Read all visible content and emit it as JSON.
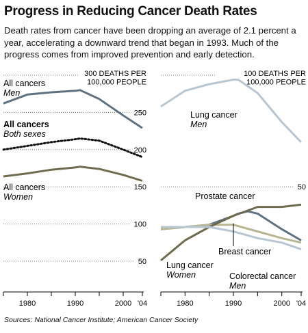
{
  "header": {
    "title": "Progress in Reducing Cancer Death Rates",
    "subtitle": "Death rates from cancer have been dropping an average of 2.1 percent a year, accelerating a downward trend that began in 1993. Much of the progress comes from improved prevention and early detection."
  },
  "source": "Sources: National Cancer Institute; American Cancer Society",
  "colors": {
    "slate": "#5e7181",
    "olive": "#6f6b4e",
    "light_blue": "#b8c6d2",
    "khaki": "#b6b692",
    "dark": "#111111",
    "gridline": "#777777"
  },
  "chart_data": [
    {
      "type": "line",
      "panel": "left",
      "axis_label_lines": [
        "300 DEATHS PER",
        "100,000 PEOPLE"
      ],
      "x_ticks": [
        "1980",
        "1990",
        "2000",
        "'04"
      ],
      "y_ticks": [
        "250",
        "200",
        "150",
        "100",
        "50"
      ],
      "xlim": [
        1975,
        2004
      ],
      "ylim": [
        0,
        300
      ],
      "series": [
        {
          "label_lines": [
            "All cancers",
            "Men"
          ],
          "color": "slate",
          "x": [
            1975,
            1980,
            1985,
            1990,
            1991,
            1995,
            2000,
            2004
          ],
          "y": [
            262,
            274,
            277,
            279,
            280,
            268,
            246,
            229
          ]
        },
        {
          "label_lines": [
            "All cancers",
            "Both sexes"
          ],
          "color": "dark",
          "dotted": true,
          "x": [
            1975,
            1980,
            1985,
            1990,
            1991,
            1995,
            2000,
            2004
          ],
          "y": [
            200,
            205,
            210,
            214,
            215,
            212,
            200,
            190
          ]
        },
        {
          "label_lines": [
            "All cancers",
            "Women"
          ],
          "color": "olive",
          "x": [
            1975,
            1980,
            1985,
            1990,
            1991,
            1995,
            2000,
            2004
          ],
          "y": [
            164,
            168,
            173,
            176,
            177,
            174,
            166,
            158
          ]
        }
      ]
    },
    {
      "type": "line",
      "panel": "right",
      "axis_label_lines": [
        "100 DEATHS PER",
        "100,000 PEOPLE"
      ],
      "x_ticks": [
        "1980",
        "1990",
        "2000",
        "'04"
      ],
      "y_ticks": [
        "50"
      ],
      "xlim": [
        1975,
        2004
      ],
      "ylim": [
        0,
        100
      ],
      "series": [
        {
          "label_lines": [
            "Lung cancer",
            "Men"
          ],
          "color": "light_blue",
          "x": [
            1975,
            1980,
            1985,
            1990,
            1991,
            1995,
            2000,
            2004
          ],
          "y": [
            86,
            93,
            96,
            98,
            98,
            92,
            79,
            70
          ]
        },
        {
          "label_lines": [
            "Prostate cancer"
          ],
          "color": "slate",
          "x": [
            1975,
            1980,
            1985,
            1990,
            1991,
            1993,
            1995,
            2000,
            2004
          ],
          "y": [
            31,
            32,
            33,
            37,
            38,
            39,
            38,
            31,
            26
          ]
        },
        {
          "label_lines": [
            "Breast cancer"
          ],
          "color": "khaki",
          "x": [
            1975,
            1980,
            1985,
            1990,
            1995,
            2000,
            2004
          ],
          "y": [
            31,
            32,
            33,
            33,
            30,
            27,
            25
          ]
        },
        {
          "label_lines": [
            "Lung cancer",
            "Women"
          ],
          "color": "olive",
          "x": [
            1975,
            1980,
            1985,
            1990,
            1995,
            2000,
            2004
          ],
          "y": [
            17,
            26,
            32,
            37,
            41,
            41,
            42
          ]
        },
        {
          "label_lines": [
            "Colorectal cancer",
            "Men"
          ],
          "color": "light_blue",
          "x": [
            1975,
            1980,
            1985,
            1990,
            1995,
            2000,
            2004
          ],
          "y": [
            32,
            32,
            32,
            30,
            27,
            25,
            22
          ]
        }
      ]
    }
  ]
}
